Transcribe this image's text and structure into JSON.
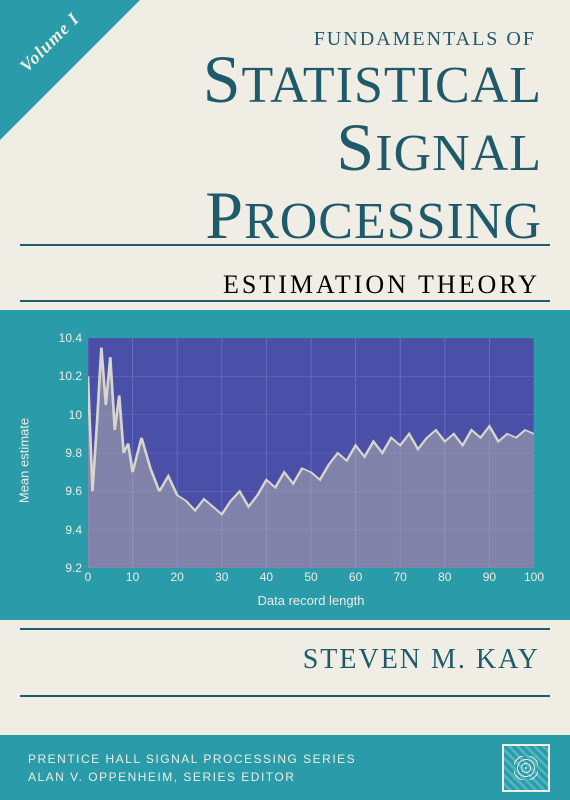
{
  "cover": {
    "volume_label": "Volume I",
    "title_pre": "FUNDAMENTALS OF",
    "title_word1_cap": "S",
    "title_word1_rest": "TATISTICAL",
    "title_word2_cap": "S",
    "title_word2_rest": "IGNAL",
    "title_word3_cap": "P",
    "title_word3_rest": "ROCESSING",
    "subtitle": "ESTIMATION THEORY",
    "author": "STEVEN M. KAY",
    "series_line1": "PRENTICE HALL SIGNAL PROCESSING SERIES",
    "series_line2": "ALAN V. OPPENHEIM, SERIES EDITOR"
  },
  "colors": {
    "teal": "#2a9ba8",
    "cream": "#f0ede4",
    "navy_text": "#1f5a6b",
    "plot_bg": "#4a4fa8",
    "grid": "#6a6fc0",
    "signal_line": "#d8d5cc",
    "signal_fill": "#b8b5ac"
  },
  "chart": {
    "type": "line-area",
    "xlabel": "Data record length",
    "ylabel": "Mean estimate",
    "xlim": [
      0,
      100
    ],
    "ylim": [
      9.2,
      10.4
    ],
    "xticks": [
      0,
      10,
      20,
      30,
      40,
      50,
      60,
      70,
      80,
      90,
      100
    ],
    "yticks": [
      9.2,
      9.4,
      9.6,
      9.8,
      10.0,
      10.2,
      10.4
    ],
    "ytick_labels": [
      "9.2",
      "9.4",
      "9.6",
      "9.8",
      "10",
      "10.2",
      "10.4"
    ],
    "xtick_step": 10,
    "ytick_step": 0.2,
    "grid_on": true,
    "line_color": "#d8d5cc",
    "fill_color": "#b8b5ac",
    "fill_opacity": 0.5,
    "line_width": 1.2,
    "background_color": "#4a4fa8",
    "grid_color": "#6a6fc0",
    "label_fontsize": 13,
    "tick_fontsize": 12,
    "data": [
      {
        "x": 0,
        "y": 10.2
      },
      {
        "x": 1,
        "y": 9.6
      },
      {
        "x": 2,
        "y": 9.95
      },
      {
        "x": 3,
        "y": 10.35
      },
      {
        "x": 4,
        "y": 10.05
      },
      {
        "x": 5,
        "y": 10.3
      },
      {
        "x": 6,
        "y": 9.92
      },
      {
        "x": 7,
        "y": 10.1
      },
      {
        "x": 8,
        "y": 9.8
      },
      {
        "x": 9,
        "y": 9.85
      },
      {
        "x": 10,
        "y": 9.7
      },
      {
        "x": 12,
        "y": 9.88
      },
      {
        "x": 14,
        "y": 9.72
      },
      {
        "x": 16,
        "y": 9.6
      },
      {
        "x": 18,
        "y": 9.68
      },
      {
        "x": 20,
        "y": 9.58
      },
      {
        "x": 22,
        "y": 9.55
      },
      {
        "x": 24,
        "y": 9.5
      },
      {
        "x": 26,
        "y": 9.56
      },
      {
        "x": 28,
        "y": 9.52
      },
      {
        "x": 30,
        "y": 9.48
      },
      {
        "x": 32,
        "y": 9.55
      },
      {
        "x": 34,
        "y": 9.6
      },
      {
        "x": 36,
        "y": 9.52
      },
      {
        "x": 38,
        "y": 9.58
      },
      {
        "x": 40,
        "y": 9.66
      },
      {
        "x": 42,
        "y": 9.62
      },
      {
        "x": 44,
        "y": 9.7
      },
      {
        "x": 46,
        "y": 9.64
      },
      {
        "x": 48,
        "y": 9.72
      },
      {
        "x": 50,
        "y": 9.7
      },
      {
        "x": 52,
        "y": 9.66
      },
      {
        "x": 54,
        "y": 9.74
      },
      {
        "x": 56,
        "y": 9.8
      },
      {
        "x": 58,
        "y": 9.76
      },
      {
        "x": 60,
        "y": 9.84
      },
      {
        "x": 62,
        "y": 9.78
      },
      {
        "x": 64,
        "y": 9.86
      },
      {
        "x": 66,
        "y": 9.8
      },
      {
        "x": 68,
        "y": 9.88
      },
      {
        "x": 70,
        "y": 9.84
      },
      {
        "x": 72,
        "y": 9.9
      },
      {
        "x": 74,
        "y": 9.82
      },
      {
        "x": 76,
        "y": 9.88
      },
      {
        "x": 78,
        "y": 9.92
      },
      {
        "x": 80,
        "y": 9.86
      },
      {
        "x": 82,
        "y": 9.9
      },
      {
        "x": 84,
        "y": 9.84
      },
      {
        "x": 86,
        "y": 9.92
      },
      {
        "x": 88,
        "y": 9.88
      },
      {
        "x": 90,
        "y": 9.94
      },
      {
        "x": 92,
        "y": 9.86
      },
      {
        "x": 94,
        "y": 9.9
      },
      {
        "x": 96,
        "y": 9.88
      },
      {
        "x": 98,
        "y": 9.92
      },
      {
        "x": 100,
        "y": 9.9
      }
    ]
  }
}
